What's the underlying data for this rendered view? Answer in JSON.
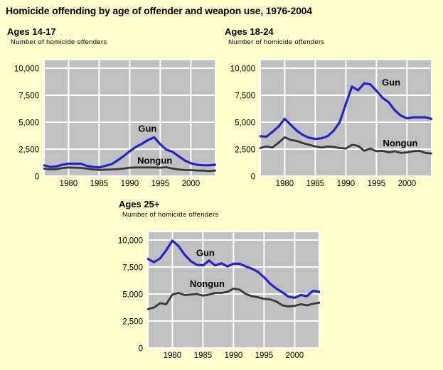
{
  "page": {
    "title": "Homicide offending by age of offender and weapon use, 1976-2004",
    "background_color": "#FFFFCC"
  },
  "colors": {
    "gun_line": "#2323CF",
    "nongun_line": "#373737",
    "plot_background": "#C0C0C0",
    "gridline": "#FFFFFF",
    "text": "#000000"
  },
  "chart_data": [
    {
      "type": "line",
      "title": "Ages 14-17",
      "ylabel": "Number of homicide offenders",
      "ylim": [
        0,
        10700
      ],
      "grid": true,
      "x": [
        1976,
        1977,
        1978,
        1979,
        1980,
        1981,
        1982,
        1983,
        1984,
        1985,
        1986,
        1987,
        1988,
        1989,
        1990,
        1991,
        1992,
        1993,
        1994,
        1995,
        1996,
        1997,
        1998,
        1999,
        2000,
        2001,
        2002,
        2003,
        2004
      ],
      "series": [
        {
          "name": "Gun",
          "values": [
            1000,
            850,
            900,
            1050,
            1150,
            1150,
            1150,
            950,
            850,
            800,
            950,
            1100,
            1450,
            1850,
            2300,
            2700,
            3000,
            3350,
            3600,
            2950,
            2450,
            2250,
            1850,
            1450,
            1200,
            1050,
            1000,
            1000,
            1050
          ]
        },
        {
          "name": "Nongun",
          "values": [
            700,
            620,
            650,
            750,
            800,
            780,
            760,
            700,
            620,
            570,
            600,
            620,
            650,
            700,
            780,
            800,
            800,
            800,
            800,
            780,
            820,
            700,
            620,
            560,
            560,
            520,
            510,
            470,
            520
          ]
        }
      ],
      "y_ticks": {
        "values": [
          0,
          2500,
          5000,
          7500,
          10000
        ],
        "labels": [
          "0",
          "2,500",
          "5,000",
          "7,500",
          "10,000"
        ]
      },
      "x_ticks": {
        "values": [
          1980,
          1985,
          1990,
          1995,
          2000
        ],
        "labels": [
          "1980",
          "1985",
          "1990",
          "1995",
          "2000"
        ]
      },
      "annotations": [
        {
          "text": "Gun",
          "year": 1992.9,
          "value": 4400
        },
        {
          "text": "Nongun",
          "year": 1994.1,
          "value": 1450
        }
      ]
    },
    {
      "type": "line",
      "title": "Ages 18-24",
      "ylabel": "Number of homicide offenders",
      "ylim": [
        0,
        10700
      ],
      "grid": true,
      "x": [
        1976,
        1977,
        1978,
        1979,
        1980,
        1981,
        1982,
        1983,
        1984,
        1985,
        1986,
        1987,
        1988,
        1989,
        1990,
        1991,
        1992,
        1993,
        1994,
        1995,
        1996,
        1997,
        1998,
        1999,
        2000,
        2001,
        2002,
        2003,
        2004
      ],
      "series": [
        {
          "name": "Gun",
          "values": [
            3700,
            3650,
            4100,
            4600,
            5300,
            4750,
            4200,
            3800,
            3550,
            3450,
            3500,
            3700,
            4200,
            5000,
            6700,
            8300,
            7950,
            8600,
            8500,
            7900,
            7250,
            6850,
            6100,
            5600,
            5350,
            5450,
            5450,
            5450,
            5300
          ]
        },
        {
          "name": "Nongun",
          "values": [
            2600,
            2750,
            2650,
            3100,
            3600,
            3350,
            3250,
            3050,
            2900,
            2750,
            2650,
            2750,
            2700,
            2600,
            2550,
            2900,
            2800,
            2350,
            2550,
            2300,
            2350,
            2200,
            2300,
            2150,
            2200,
            2300,
            2350,
            2150,
            2100
          ]
        }
      ],
      "y_ticks": {
        "values": [
          0,
          2500,
          5000,
          7500,
          10000
        ],
        "labels": [
          "0",
          "2,500",
          "5,000",
          "7,500",
          "10,000"
        ]
      },
      "x_ticks": {
        "values": [
          1980,
          1985,
          1990,
          1995,
          2000
        ],
        "labels": [
          "1980",
          "1985",
          "1990",
          "1995",
          "2000"
        ]
      },
      "annotations": [
        {
          "text": "Gun",
          "year": 1997.4,
          "value": 8700
        },
        {
          "text": "Nongun",
          "year": 1998.9,
          "value": 3050
        }
      ]
    },
    {
      "type": "line",
      "title": "Ages 25+",
      "ylabel": "Number of homicide offenders",
      "ylim": [
        0,
        10700
      ],
      "grid": true,
      "x": [
        1976,
        1977,
        1978,
        1979,
        1980,
        1981,
        1982,
        1983,
        1984,
        1985,
        1986,
        1987,
        1988,
        1989,
        1990,
        1991,
        1992,
        1993,
        1994,
        1995,
        1996,
        1997,
        1998,
        1999,
        2000,
        2001,
        2002,
        2003,
        2004
      ],
      "series": [
        {
          "name": "Gun",
          "values": [
            8250,
            7950,
            8300,
            9050,
            9950,
            9450,
            8650,
            8050,
            7700,
            7650,
            8100,
            7650,
            7850,
            7550,
            7800,
            7800,
            7550,
            7350,
            7050,
            6550,
            5950,
            5500,
            5150,
            4750,
            4650,
            4900,
            4800,
            5300,
            5200
          ]
        },
        {
          "name": "Nongun",
          "values": [
            3600,
            3750,
            4150,
            4050,
            4950,
            5100,
            4900,
            4950,
            5000,
            4850,
            4950,
            5100,
            5100,
            5200,
            5500,
            5400,
            5000,
            4800,
            4700,
            4550,
            4500,
            4300,
            3950,
            3850,
            3900,
            4050,
            3950,
            4100,
            4200
          ]
        }
      ],
      "y_ticks": {
        "values": [
          0,
          2500,
          5000,
          7500,
          10000
        ],
        "labels": [
          "0",
          "2,500",
          "5,000",
          "7,500",
          "10,000"
        ]
      },
      "x_ticks": {
        "values": [
          1980,
          1985,
          1990,
          1995,
          2000
        ],
        "labels": [
          "1980",
          "1985",
          "1990",
          "1995",
          "2000"
        ]
      },
      "annotations": [
        {
          "text": "Gun",
          "year": 1985.4,
          "value": 8800
        },
        {
          "text": "Nongun",
          "year": 1985.7,
          "value": 5950
        }
      ]
    }
  ]
}
